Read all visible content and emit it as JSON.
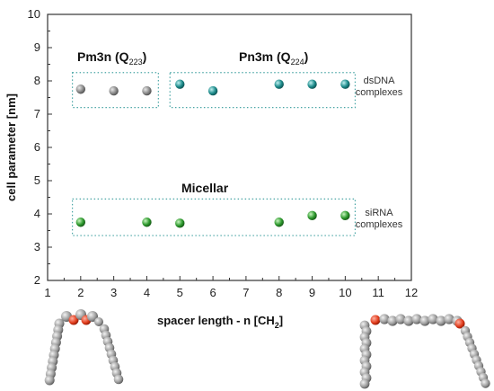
{
  "chart_data": {
    "type": "scatter",
    "xlabel": "spacer length - n [CH",
    "xlabel_sub": "2",
    "xlabel_end": "]",
    "ylabel": "cell parameter   [nm]",
    "xlim": [
      1,
      12
    ],
    "ylim": [
      2,
      10
    ],
    "x_ticks": [
      "1",
      "2",
      "3",
      "4",
      "5",
      "6",
      "7",
      "8",
      "9",
      "10",
      "11",
      "12"
    ],
    "y_ticks": [
      "2",
      "3",
      "4",
      "5",
      "6",
      "7",
      "8",
      "9",
      "10"
    ],
    "grid": false,
    "series": [
      {
        "name": "Pm3n (Q223)",
        "color": "#8a8a8a",
        "points": [
          [
            2,
            7.75
          ],
          [
            3,
            7.7
          ],
          [
            4,
            7.7
          ]
        ]
      },
      {
        "name": "Pn3m (Q224)",
        "color": "#1e8c8c",
        "points": [
          [
            5,
            7.9
          ],
          [
            6,
            7.7
          ],
          [
            8,
            7.9
          ],
          [
            9,
            7.9
          ],
          [
            10,
            7.9
          ]
        ]
      },
      {
        "name": "Micellar",
        "color": "#2e9a2e",
        "points": [
          [
            2,
            3.75
          ],
          [
            4,
            3.75
          ],
          [
            5,
            3.72
          ],
          [
            8,
            3.75
          ],
          [
            9,
            3.95
          ],
          [
            10,
            3.95
          ]
        ]
      }
    ],
    "group_labels": {
      "pm3n": {
        "main": "Pm3n (Q",
        "sub": "223",
        "end": ")"
      },
      "pn3m": {
        "main": "Pn3m (Q",
        "sub": "224",
        "end": ")"
      },
      "micellar": "Micellar"
    },
    "side_labels": {
      "dsdna": [
        "dsDNA",
        "complexes"
      ],
      "sirna": [
        "siRNA",
        "complexes"
      ]
    }
  }
}
